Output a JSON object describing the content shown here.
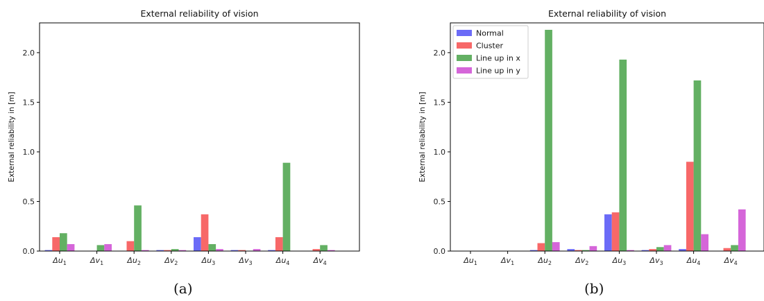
{
  "captions": {
    "a": "(a)",
    "b": "(b)"
  },
  "colors": {
    "Normal": "#6b6bf7",
    "Cluster": "#f76868",
    "Line up in x": "#63b063",
    "Line up in y": "#d566d9"
  },
  "chart_data": [
    {
      "type": "bar",
      "title": "External reliability of vision",
      "ylabel": "External reliability in [m]",
      "xlabel": "",
      "ylim": [
        0,
        2.3
      ],
      "yticks": [
        "0.0",
        "0.5",
        "1.0",
        "1.5",
        "2.0"
      ],
      "grid": false,
      "legend": null,
      "categories": [
        {
          "base": "Δu",
          "sub": "1"
        },
        {
          "base": "Δv",
          "sub": "1"
        },
        {
          "base": "Δu",
          "sub": "2"
        },
        {
          "base": "Δv",
          "sub": "2"
        },
        {
          "base": "Δu",
          "sub": "3"
        },
        {
          "base": "Δv",
          "sub": "3"
        },
        {
          "base": "Δu",
          "sub": "4"
        },
        {
          "base": "Δv",
          "sub": "4"
        }
      ],
      "series": [
        {
          "key": "Normal",
          "values": [
            0.01,
            0,
            0,
            0.01,
            0.14,
            0.01,
            0.01,
            0
          ]
        },
        {
          "key": "Cluster",
          "values": [
            0.14,
            0,
            0.1,
            0.01,
            0.37,
            0.01,
            0.14,
            0.02
          ]
        },
        {
          "key": "Line up in x",
          "values": [
            0.18,
            0.06,
            0.46,
            0.02,
            0.07,
            0,
            0.89,
            0.06
          ]
        },
        {
          "key": "Line up in y",
          "values": [
            0.07,
            0.07,
            0.01,
            0.01,
            0.02,
            0.02,
            0,
            0.01
          ]
        }
      ]
    },
    {
      "type": "bar",
      "title": "External reliability of vision",
      "ylabel": "External reliability in [m]",
      "xlabel": "",
      "ylim": [
        0,
        2.3
      ],
      "yticks": [
        "0.0",
        "0.5",
        "1.0",
        "1.5",
        "2.0"
      ],
      "grid": false,
      "legend": "top-left",
      "categories": [
        {
          "base": "Δu",
          "sub": "1"
        },
        {
          "base": "Δv",
          "sub": "1"
        },
        {
          "base": "Δu",
          "sub": "2"
        },
        {
          "base": "Δv",
          "sub": "2"
        },
        {
          "base": "Δu",
          "sub": "3"
        },
        {
          "base": "Δv",
          "sub": "3"
        },
        {
          "base": "Δu",
          "sub": "4"
        },
        {
          "base": "Δv",
          "sub": "4"
        }
      ],
      "series": [
        {
          "name": "Normal",
          "key": "Normal",
          "values": [
            0,
            0,
            0.01,
            0.02,
            0.37,
            0.01,
            0.02,
            0
          ]
        },
        {
          "name": "Cluster",
          "key": "Cluster",
          "values": [
            0,
            0,
            0.08,
            0.01,
            0.39,
            0.02,
            0.9,
            0.03
          ]
        },
        {
          "name": "Line up in x",
          "key": "Line up in x",
          "values": [
            0,
            0,
            2.23,
            0.01,
            1.93,
            0.04,
            1.72,
            0.06
          ]
        },
        {
          "name": "Line up in y",
          "key": "Line up in y",
          "values": [
            0,
            0,
            0.09,
            0.05,
            0.01,
            0.06,
            0.17,
            0.42
          ]
        }
      ]
    }
  ]
}
